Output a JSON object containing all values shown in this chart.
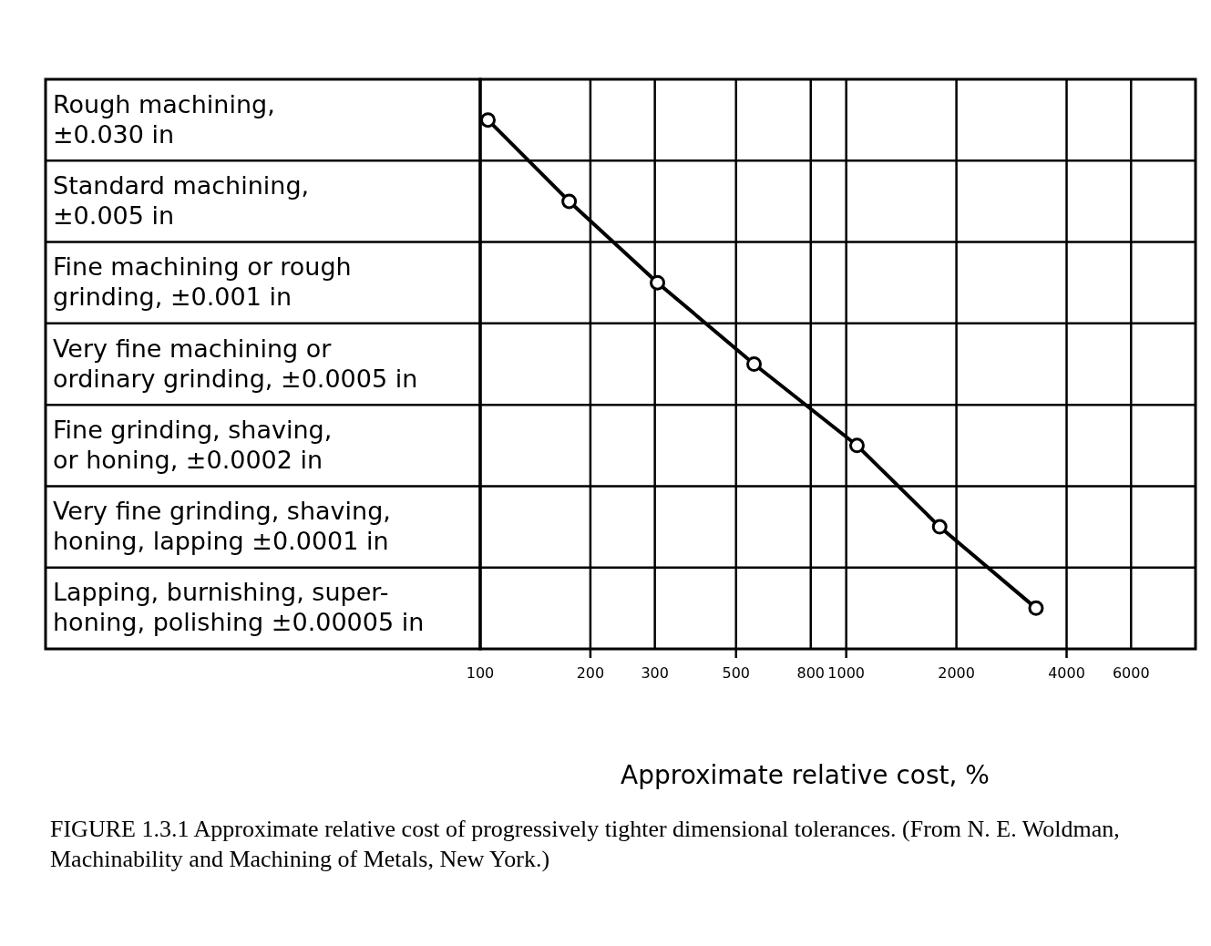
{
  "chart_data": {
    "type": "line",
    "orientation": "horizontal",
    "categories": [
      "Rough machining,\n±0.030 in",
      "Standard machining,\n±0.005 in",
      "Fine machining or rough\ngrinding, ±0.001 in",
      "Very fine machining or\nordinary grinding, ±0.0005 in",
      "Fine grinding, shaving,\nor honing, ±0.0002 in",
      "Very fine grinding, shaving,\nhoning, lapping ±0.0001 in",
      "Lapping, burnishing, super-\nhoning, polishing ±0.00005 in"
    ],
    "series": [
      {
        "color": "#000000",
        "values": [
          105,
          175,
          305,
          560,
          1070,
          1800,
          3300
        ]
      }
    ],
    "log": "x",
    "xlim": [
      100,
      9000
    ],
    "xticks": [
      100,
      200,
      300,
      500,
      800,
      1000,
      2000,
      4000,
      6000
    ],
    "grid": true,
    "marker": "circle",
    "line_style": "solid",
    "xlabel": "Approximate relative cost, %",
    "annotations": [
      "FIGURE 1.3.1   Approximate relative cost of progressively tighter dimensional tolerances. (From N. E. Woldman, Machinability and Machining of Metals, New York.)"
    ]
  }
}
